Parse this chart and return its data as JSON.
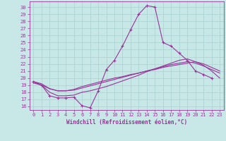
{
  "bg_color": "#c8e8e8",
  "grid_color": "#aed4d4",
  "line_color": "#993399",
  "marker": "+",
  "xlabel": "Windchill (Refroidissement éolien,°C)",
  "yticks": [
    16,
    17,
    18,
    19,
    20,
    21,
    22,
    23,
    24,
    25,
    26,
    27,
    28,
    29,
    30
  ],
  "xticks": [
    0,
    1,
    2,
    3,
    4,
    5,
    6,
    7,
    8,
    9,
    10,
    11,
    12,
    13,
    14,
    15,
    16,
    17,
    18,
    19,
    20,
    21,
    22,
    23
  ],
  "xlim": [
    -0.5,
    23.5
  ],
  "ylim": [
    15.5,
    30.8
  ],
  "series_marked_x": [
    0,
    1,
    2,
    3,
    4,
    5,
    6,
    7,
    8,
    9,
    10,
    11,
    12,
    13,
    14,
    15,
    16,
    17,
    18,
    19,
    20,
    21,
    22
  ],
  "series_marked_y": [
    19.5,
    19.0,
    17.5,
    17.2,
    17.2,
    17.3,
    16.1,
    15.8,
    18.2,
    21.2,
    22.5,
    24.5,
    26.8,
    29.0,
    30.2,
    30.0,
    25.0,
    24.5,
    23.5,
    22.5,
    21.0,
    20.5,
    20.0
  ],
  "series_plain": [
    {
      "x": [
        0,
        1,
        2,
        3,
        4,
        5,
        6,
        7,
        8,
        9,
        10,
        11,
        12,
        13,
        14,
        15,
        16,
        17,
        18,
        19,
        20,
        21,
        22,
        23
      ],
      "y": [
        19.5,
        19.0,
        18.0,
        17.5,
        17.5,
        17.6,
        18.0,
        18.2,
        18.5,
        18.8,
        19.2,
        19.6,
        20.0,
        20.4,
        20.9,
        21.3,
        21.7,
        22.1,
        22.5,
        22.7,
        22.3,
        21.8,
        21.0,
        20.0
      ]
    },
    {
      "x": [
        0,
        1,
        2,
        3,
        4,
        5,
        6,
        7,
        8,
        9,
        10,
        11,
        12,
        13,
        14,
        15,
        16,
        17,
        18,
        19,
        20,
        21,
        22,
        23
      ],
      "y": [
        19.5,
        19.2,
        18.5,
        18.2,
        18.2,
        18.3,
        18.6,
        18.9,
        19.2,
        19.5,
        19.8,
        20.1,
        20.4,
        20.7,
        21.0,
        21.3,
        21.6,
        21.9,
        22.1,
        22.3,
        22.1,
        21.7,
        21.2,
        20.7
      ]
    },
    {
      "x": [
        0,
        1,
        2,
        3,
        4,
        5,
        6,
        7,
        8,
        9,
        10,
        11,
        12,
        13,
        14,
        15,
        16,
        17,
        18,
        19,
        20,
        21,
        22,
        23
      ],
      "y": [
        19.3,
        19.0,
        18.5,
        18.2,
        18.2,
        18.4,
        18.8,
        19.1,
        19.4,
        19.7,
        20.0,
        20.2,
        20.5,
        20.7,
        21.0,
        21.2,
        21.5,
        21.7,
        21.9,
        22.1,
        22.3,
        22.0,
        21.5,
        21.0
      ]
    }
  ]
}
